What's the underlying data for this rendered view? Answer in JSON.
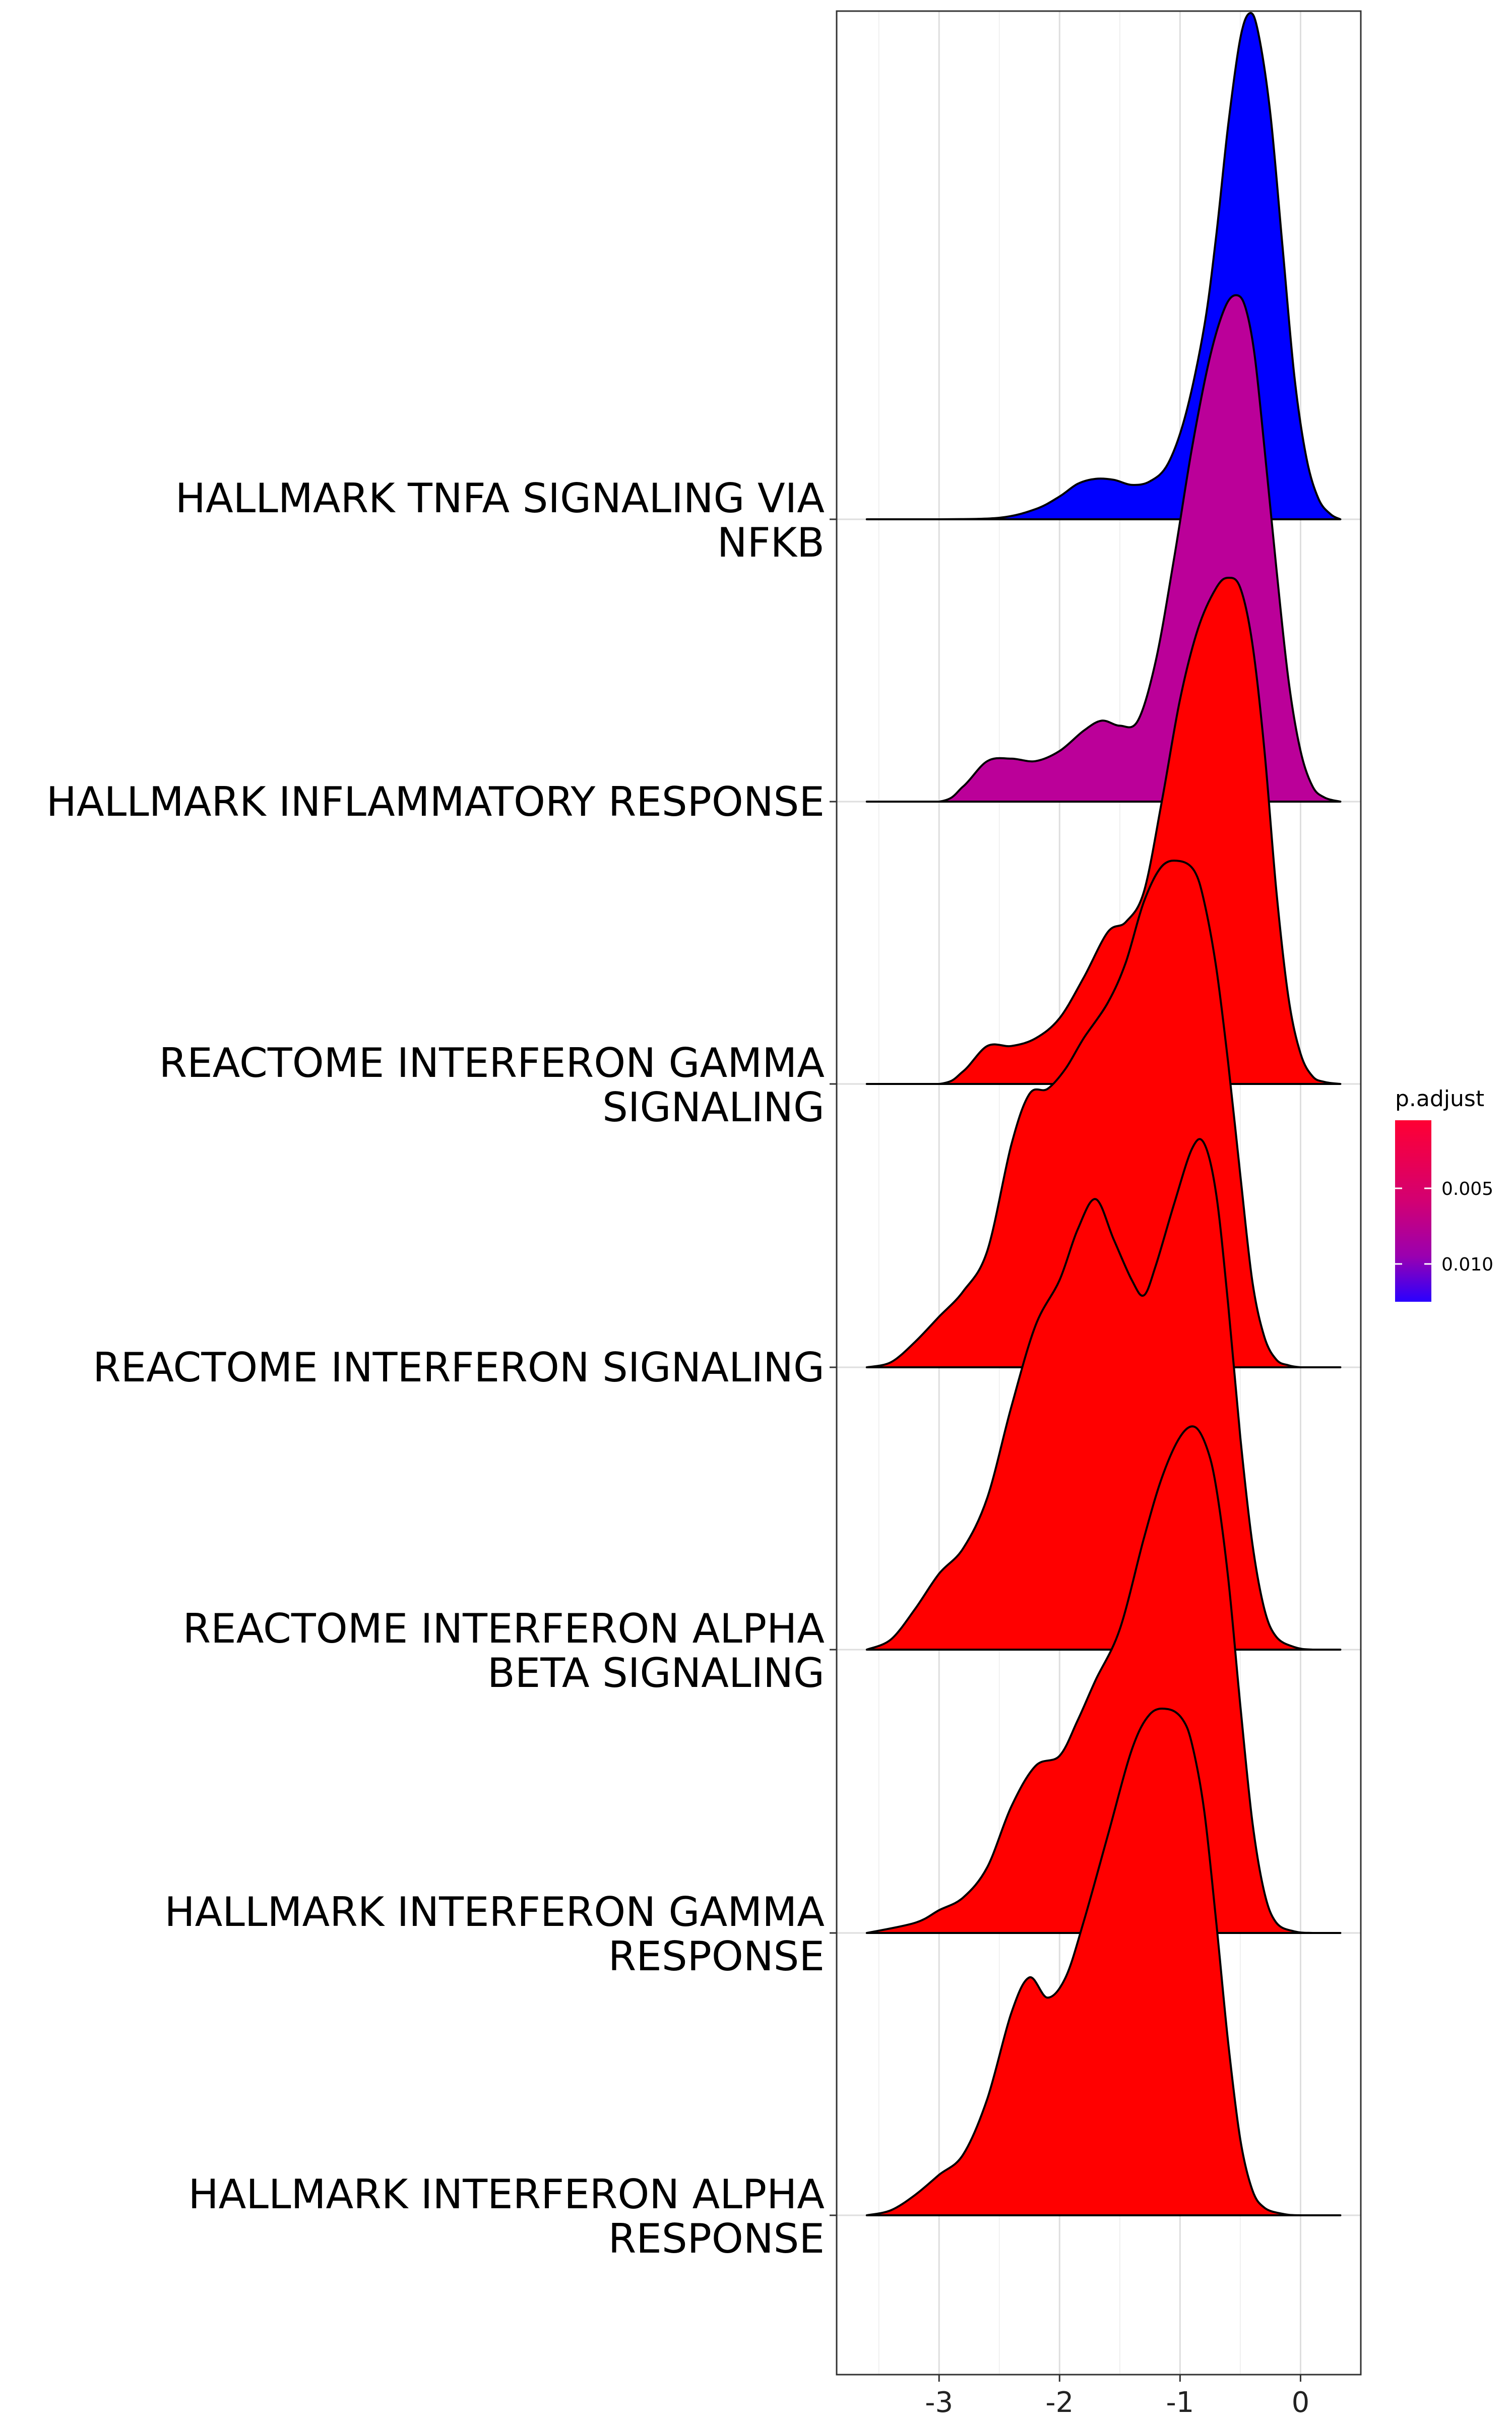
{
  "chart_data": {
    "type": "ridgeline",
    "title": "",
    "xlabel": "",
    "ylabel": "",
    "xlim": [
      -3.85,
      0.5
    ],
    "x_ticks": [
      -3,
      -2,
      -1,
      0
    ],
    "x_tick_labels": [
      "-3",
      "-2",
      "-1",
      "0"
    ],
    "grid": true,
    "legend": {
      "title": "p.adjust",
      "position": "right",
      "ticks": [
        0.005,
        0.01
      ],
      "tick_labels": [
        "0.005",
        "0.010"
      ],
      "range": [
        0.0005,
        0.0125
      ],
      "color_low": "#ff0000",
      "color_high": "#0000ff"
    },
    "series": [
      {
        "name": "HALLMARK TNFA SIGNALING VIA NFKB",
        "label_lines": [
          "HALLMARK TNFA SIGNALING VIA",
          "NFKB"
        ],
        "p_adjust": 0.0125,
        "color": "#0000ff",
        "x": [
          -3.6,
          -3.0,
          -2.5,
          -2.2,
          -2.0,
          -1.85,
          -1.7,
          -1.55,
          -1.4,
          -1.25,
          -1.1,
          -0.95,
          -0.8,
          -0.7,
          -0.6,
          -0.5,
          -0.42,
          -0.35,
          -0.25,
          -0.15,
          -0.05,
          0.05,
          0.15,
          0.25,
          0.33
        ],
        "density": [
          0.0,
          0.0,
          0.003,
          0.02,
          0.045,
          0.07,
          0.08,
          0.078,
          0.068,
          0.075,
          0.11,
          0.21,
          0.38,
          0.56,
          0.78,
          0.95,
          1.0,
          0.96,
          0.8,
          0.54,
          0.28,
          0.12,
          0.04,
          0.01,
          0.0
        ]
      },
      {
        "name": "HALLMARK INFLAMMATORY RESPONSE",
        "label_lines": [
          "HALLMARK INFLAMMATORY RESPONSE"
        ],
        "p_adjust": 0.008,
        "color": "#bb0099",
        "x": [
          -3.6,
          -3.0,
          -2.8,
          -2.6,
          -2.4,
          -2.2,
          -2.0,
          -1.8,
          -1.65,
          -1.5,
          -1.35,
          -1.2,
          -1.05,
          -0.9,
          -0.75,
          -0.62,
          -0.52,
          -0.45,
          -0.38,
          -0.3,
          -0.2,
          -0.1,
          0.0,
          0.1,
          0.2,
          0.33
        ],
        "density": [
          0.0,
          0.0,
          0.03,
          0.08,
          0.085,
          0.08,
          0.1,
          0.14,
          0.16,
          0.15,
          0.16,
          0.28,
          0.48,
          0.7,
          0.88,
          0.98,
          1.0,
          0.97,
          0.88,
          0.7,
          0.46,
          0.24,
          0.1,
          0.03,
          0.008,
          0.0
        ]
      },
      {
        "name": "REACTOME INTERFERON GAMMA SIGNALING",
        "label_lines": [
          "REACTOME INTERFERON GAMMA",
          "SIGNALING"
        ],
        "p_adjust": 0.0005,
        "color": "#ff0000",
        "x": [
          -3.6,
          -3.0,
          -2.8,
          -2.6,
          -2.4,
          -2.2,
          -2.0,
          -1.8,
          -1.6,
          -1.45,
          -1.3,
          -1.15,
          -1.0,
          -0.85,
          -0.7,
          -0.6,
          -0.5,
          -0.4,
          -0.3,
          -0.2,
          -0.1,
          0.0,
          0.1,
          0.2,
          0.33
        ],
        "density": [
          0.0,
          0.0,
          0.025,
          0.075,
          0.075,
          0.09,
          0.13,
          0.21,
          0.3,
          0.32,
          0.38,
          0.56,
          0.76,
          0.9,
          0.98,
          1.0,
          0.98,
          0.87,
          0.66,
          0.38,
          0.17,
          0.06,
          0.015,
          0.004,
          0.0
        ]
      },
      {
        "name": "REACTOME INTERFERON SIGNALING",
        "label_lines": [
          "REACTOME INTERFERON SIGNALING"
        ],
        "p_adjust": 0.0005,
        "color": "#ff0000",
        "x": [
          -3.6,
          -3.4,
          -3.2,
          -3.0,
          -2.8,
          -2.6,
          -2.4,
          -2.25,
          -2.1,
          -1.95,
          -1.8,
          -1.6,
          -1.45,
          -1.3,
          -1.15,
          -1.0,
          -0.88,
          -0.8,
          -0.7,
          -0.6,
          -0.5,
          -0.4,
          -0.3,
          -0.2,
          -0.1,
          0.0,
          0.1,
          0.33
        ],
        "density": [
          0.0,
          0.01,
          0.05,
          0.1,
          0.15,
          0.23,
          0.44,
          0.54,
          0.55,
          0.59,
          0.65,
          0.72,
          0.8,
          0.92,
          0.99,
          1.0,
          0.98,
          0.92,
          0.79,
          0.6,
          0.38,
          0.17,
          0.06,
          0.015,
          0.004,
          0.0,
          0.0,
          0.0
        ]
      },
      {
        "name": "REACTOME INTERFERON ALPHA BETA SIGNALING",
        "label_lines": [
          "REACTOME INTERFERON ALPHA",
          "BETA SIGNALING"
        ],
        "p_adjust": 0.0005,
        "color": "#ff0000",
        "x": [
          -3.6,
          -3.4,
          -3.2,
          -3.0,
          -2.8,
          -2.6,
          -2.4,
          -2.2,
          -2.0,
          -1.85,
          -1.7,
          -1.55,
          -1.4,
          -1.3,
          -1.2,
          -1.05,
          -0.9,
          -0.8,
          -0.7,
          -0.6,
          -0.5,
          -0.4,
          -0.3,
          -0.2,
          -0.05,
          0.1,
          0.33
        ],
        "density": [
          0.0,
          0.02,
          0.08,
          0.15,
          0.2,
          0.3,
          0.48,
          0.64,
          0.73,
          0.83,
          0.89,
          0.81,
          0.73,
          0.7,
          0.76,
          0.88,
          0.99,
          1.0,
          0.9,
          0.68,
          0.42,
          0.21,
          0.08,
          0.025,
          0.005,
          0.0,
          0.0
        ]
      },
      {
        "name": "HALLMARK INTERFERON GAMMA RESPONSE",
        "label_lines": [
          "HALLMARK INTERFERON GAMMA",
          "RESPONSE"
        ],
        "p_adjust": 0.0005,
        "color": "#ff0000",
        "x": [
          -3.6,
          -3.2,
          -3.0,
          -2.8,
          -2.6,
          -2.4,
          -2.2,
          -2.0,
          -1.85,
          -1.7,
          -1.5,
          -1.3,
          -1.15,
          -1.0,
          -0.88,
          -0.78,
          -0.7,
          -0.6,
          -0.5,
          -0.4,
          -0.3,
          -0.2,
          -0.05,
          0.1,
          0.33
        ],
        "density": [
          0.0,
          0.02,
          0.045,
          0.07,
          0.13,
          0.25,
          0.33,
          0.35,
          0.42,
          0.5,
          0.6,
          0.78,
          0.9,
          0.98,
          1.0,
          0.96,
          0.88,
          0.7,
          0.45,
          0.22,
          0.08,
          0.02,
          0.003,
          0.0,
          0.0
        ]
      },
      {
        "name": "HALLMARK INTERFERON ALPHA RESPONSE",
        "label_lines": [
          "HALLMARK INTERFERON ALPHA",
          "RESPONSE"
        ],
        "p_adjust": 0.0005,
        "color": "#ff0000",
        "x": [
          -3.6,
          -3.4,
          -3.2,
          -3.0,
          -2.8,
          -2.6,
          -2.4,
          -2.25,
          -2.1,
          -1.95,
          -1.8,
          -1.6,
          -1.4,
          -1.25,
          -1.1,
          -0.98,
          -0.9,
          -0.8,
          -0.7,
          -0.6,
          -0.5,
          -0.4,
          -0.3,
          -0.15,
          0.0,
          0.33
        ],
        "density": [
          0.0,
          0.01,
          0.04,
          0.08,
          0.12,
          0.23,
          0.4,
          0.47,
          0.43,
          0.47,
          0.58,
          0.75,
          0.92,
          0.99,
          1.0,
          0.98,
          0.93,
          0.8,
          0.58,
          0.34,
          0.15,
          0.05,
          0.015,
          0.003,
          0.0,
          0.0
        ]
      }
    ]
  }
}
